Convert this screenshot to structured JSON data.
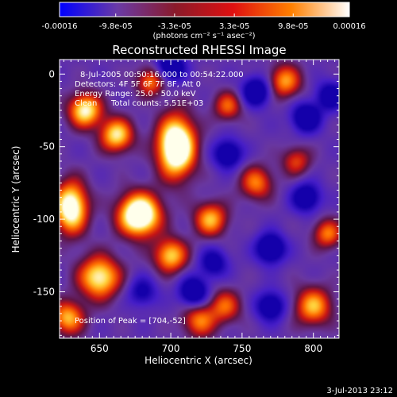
{
  "chart_data": {
    "type": "heatmap",
    "title": "Reconstructed RHESSI Image",
    "xlabel": "Heliocentric X (arcsec)",
    "ylabel": "Heliocentric Y (arcsec)",
    "xlim": [
      622,
      818
    ],
    "ylim": [
      -182,
      10
    ],
    "x_ticks": [
      650,
      700,
      750,
      800
    ],
    "y_ticks": [
      0,
      -50,
      -100,
      -150
    ],
    "colorbar": {
      "range": [
        -0.00016,
        0.00016
      ],
      "tick_values": [
        -0.00016,
        -9.8e-05,
        -3.3e-05,
        3.3e-05,
        9.8e-05,
        0.00016
      ],
      "tick_labels": [
        "-0.00016",
        "-9.8e-05",
        "-3.3e-05",
        "3.3e-05",
        "9.8e-05",
        "0.00016"
      ],
      "unit_text": "(photons cm⁻² s⁻¹ asec⁻²)",
      "colors": [
        "#0000ff",
        "#6a3aa6",
        "#8a1a2a",
        "#e01010",
        "#ff8000",
        "#ffffff"
      ]
    },
    "annotations": [
      "8-Jul-2005 00:50:16.000 to 00:54:22.000",
      "Detectors: 4F 5F 6F 7F 8F, Att 0",
      "Energy Range: 25.0 - 50.0 keV",
      "Clean",
      "Total counts: 5.51E+03"
    ],
    "peak_label": "Position of Peak = [704,-52]",
    "peak": [
      704,
      -52
    ],
    "sources": [
      {
        "x": 704,
        "y": -50,
        "sx": 9,
        "sy": 14,
        "a": 1.05
      },
      {
        "x": 678,
        "y": -97,
        "sx": 10,
        "sy": 10,
        "a": 1.0
      },
      {
        "x": 630,
        "y": -92,
        "sx": 8,
        "sy": 12,
        "a": 0.85
      },
      {
        "x": 640,
        "y": -25,
        "sx": 8,
        "sy": 8,
        "a": 0.7
      },
      {
        "x": 662,
        "y": -42,
        "sx": 8,
        "sy": 8,
        "a": 0.65
      },
      {
        "x": 650,
        "y": -140,
        "sx": 10,
        "sy": 10,
        "a": 0.7
      },
      {
        "x": 628,
        "y": -168,
        "sx": 8,
        "sy": 8,
        "a": 0.55
      },
      {
        "x": 700,
        "y": -125,
        "sx": 8,
        "sy": 8,
        "a": 0.6
      },
      {
        "x": 728,
        "y": -100,
        "sx": 8,
        "sy": 8,
        "a": 0.55
      },
      {
        "x": 780,
        "y": -5,
        "sx": 8,
        "sy": 8,
        "a": 0.5
      },
      {
        "x": 740,
        "y": -22,
        "sx": 7,
        "sy": 7,
        "a": 0.4
      },
      {
        "x": 760,
        "y": -75,
        "sx": 8,
        "sy": 8,
        "a": 0.45
      },
      {
        "x": 810,
        "y": -110,
        "sx": 7,
        "sy": 7,
        "a": 0.45
      },
      {
        "x": 800,
        "y": -160,
        "sx": 9,
        "sy": 9,
        "a": 0.55
      },
      {
        "x": 738,
        "y": -160,
        "sx": 8,
        "sy": 8,
        "a": 0.4
      },
      {
        "x": 720,
        "y": -170,
        "sx": 8,
        "sy": 8,
        "a": 0.45
      },
      {
        "x": 788,
        "y": -60,
        "sx": 7,
        "sy": 7,
        "a": 0.35
      },
      {
        "x": 686,
        "y": -5,
        "sx": 7,
        "sy": 7,
        "a": 0.45
      }
    ],
    "sinks": [
      {
        "x": 760,
        "y": -12,
        "sx": 7,
        "sy": 7,
        "a": 0.55
      },
      {
        "x": 795,
        "y": -30,
        "sx": 7,
        "sy": 7,
        "a": 0.55
      },
      {
        "x": 740,
        "y": -55,
        "sx": 7,
        "sy": 7,
        "a": 0.5
      },
      {
        "x": 795,
        "y": -85,
        "sx": 7,
        "sy": 7,
        "a": 0.5
      },
      {
        "x": 770,
        "y": -120,
        "sx": 7,
        "sy": 7,
        "a": 0.6
      },
      {
        "x": 770,
        "y": -160,
        "sx": 7,
        "sy": 7,
        "a": 0.5
      },
      {
        "x": 716,
        "y": -150,
        "sx": 7,
        "sy": 7,
        "a": 0.55
      },
      {
        "x": 700,
        "y": 5,
        "sx": 7,
        "sy": 7,
        "a": 0.55
      },
      {
        "x": 730,
        "y": -130,
        "sx": 7,
        "sy": 7,
        "a": 0.4
      },
      {
        "x": 680,
        "y": -150,
        "sx": 7,
        "sy": 7,
        "a": 0.35
      },
      {
        "x": 812,
        "y": -15,
        "sx": 7,
        "sy": 7,
        "a": 0.45
      }
    ]
  },
  "footer": {
    "timestamp": "3-Jul-2013 23:12"
  }
}
